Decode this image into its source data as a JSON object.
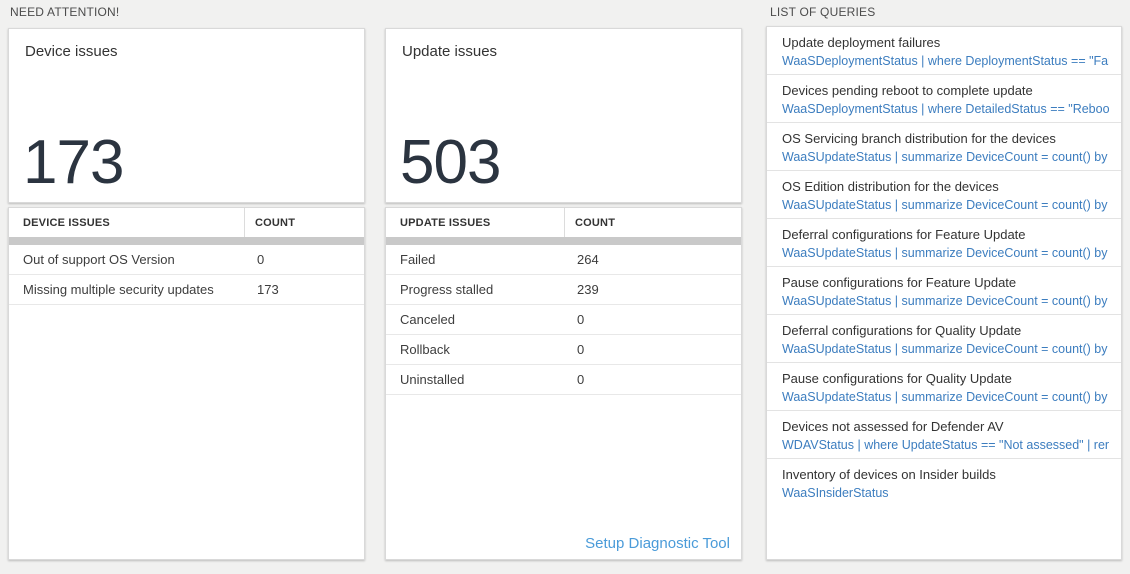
{
  "header": {
    "need_attention_label": "NEED ATTENTION!",
    "list_of_queries_label": "LIST OF QUERIES"
  },
  "device_issues": {
    "card_title": "Device issues",
    "total": "173",
    "table": {
      "issue_header": "DEVICE ISSUES",
      "count_header": "COUNT",
      "rows": [
        {
          "label": "Out of support OS Version",
          "count": "0"
        },
        {
          "label": "Missing multiple security updates",
          "count": "173"
        }
      ]
    }
  },
  "update_issues": {
    "card_title": "Update issues",
    "total": "503",
    "table": {
      "issue_header": "UPDATE ISSUES",
      "count_header": "COUNT",
      "rows": [
        {
          "label": "Failed",
          "count": "264"
        },
        {
          "label": "Progress stalled",
          "count": "239"
        },
        {
          "label": "Canceled",
          "count": "0"
        },
        {
          "label": "Rollback",
          "count": "0"
        },
        {
          "label": "Uninstalled",
          "count": "0"
        }
      ]
    },
    "footer_link": "Setup Diagnostic Tool"
  },
  "queries": [
    {
      "title": "Update deployment failures",
      "query": "WaaSDeploymentStatus | where DeploymentStatus == \"Failed\" |..."
    },
    {
      "title": "Devices pending reboot to complete update",
      "query": "WaaSDeploymentStatus | where DetailedStatus == \"Reboot pend..."
    },
    {
      "title": "OS Servicing branch distribution for the devices",
      "query": "WaaSUpdateStatus | summarize DeviceCount = count() by OSSer..."
    },
    {
      "title": "OS Edition distribution for the devices",
      "query": "WaaSUpdateStatus | summarize DeviceCount = count() by OSEdit..."
    },
    {
      "title": "Deferral configurations for Feature Update",
      "query": "WaaSUpdateStatus | summarize DeviceCount = count() by Featur..."
    },
    {
      "title": "Pause configurations for Feature Update",
      "query": "WaaSUpdateStatus | summarize DeviceCount = count() by Featur..."
    },
    {
      "title": "Deferral configurations for Quality Update",
      "query": "WaaSUpdateStatus | summarize DeviceCount = count() by Qualit..."
    },
    {
      "title": "Pause configurations for Quality Update",
      "query": "WaaSUpdateStatus | summarize DeviceCount = count() by Qualit..."
    },
    {
      "title": "Devices not assessed for Defender AV",
      "query": "WDAVStatus | where UpdateStatus == \"Not assessed\" | render ta..."
    },
    {
      "title": "Inventory of devices on Insider builds",
      "query": "WaaSInsiderStatus"
    }
  ],
  "colors": {
    "background": "#f1f1f0",
    "big_number": "#2b3440",
    "query_link_blue": "#3c7dbf",
    "setup_link_blue": "#4a9bd9",
    "header_bar_gray": "#c9c9c9"
  }
}
